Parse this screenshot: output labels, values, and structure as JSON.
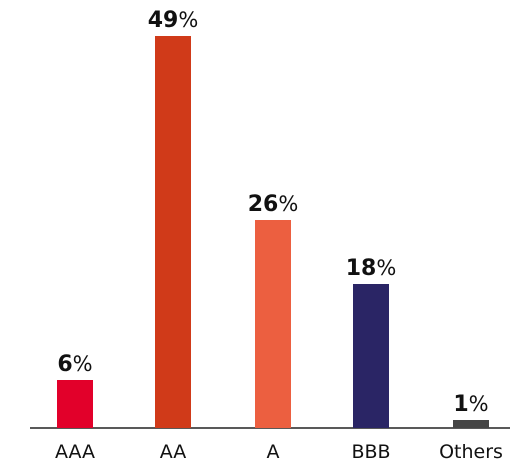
{
  "chart_data": {
    "type": "bar",
    "title": "",
    "xlabel": "",
    "ylabel": "",
    "categories": [
      "AAA",
      "AA",
      "A",
      "BBB",
      "Others"
    ],
    "values": [
      6,
      49,
      26,
      18,
      1
    ],
    "value_labels": [
      {
        "num": "6",
        "suffix": "%"
      },
      {
        "num": "49",
        "suffix": "%"
      },
      {
        "num": "26",
        "suffix": "%"
      },
      {
        "num": "18",
        "suffix": "%"
      },
      {
        "num": "1",
        "suffix": "%"
      }
    ],
    "colors": [
      "#e2002a",
      "#d03a19",
      "#ec5f40",
      "#2a2565",
      "#454545"
    ],
    "ylim": [
      0,
      50
    ],
    "grid": false,
    "legend": "none"
  }
}
